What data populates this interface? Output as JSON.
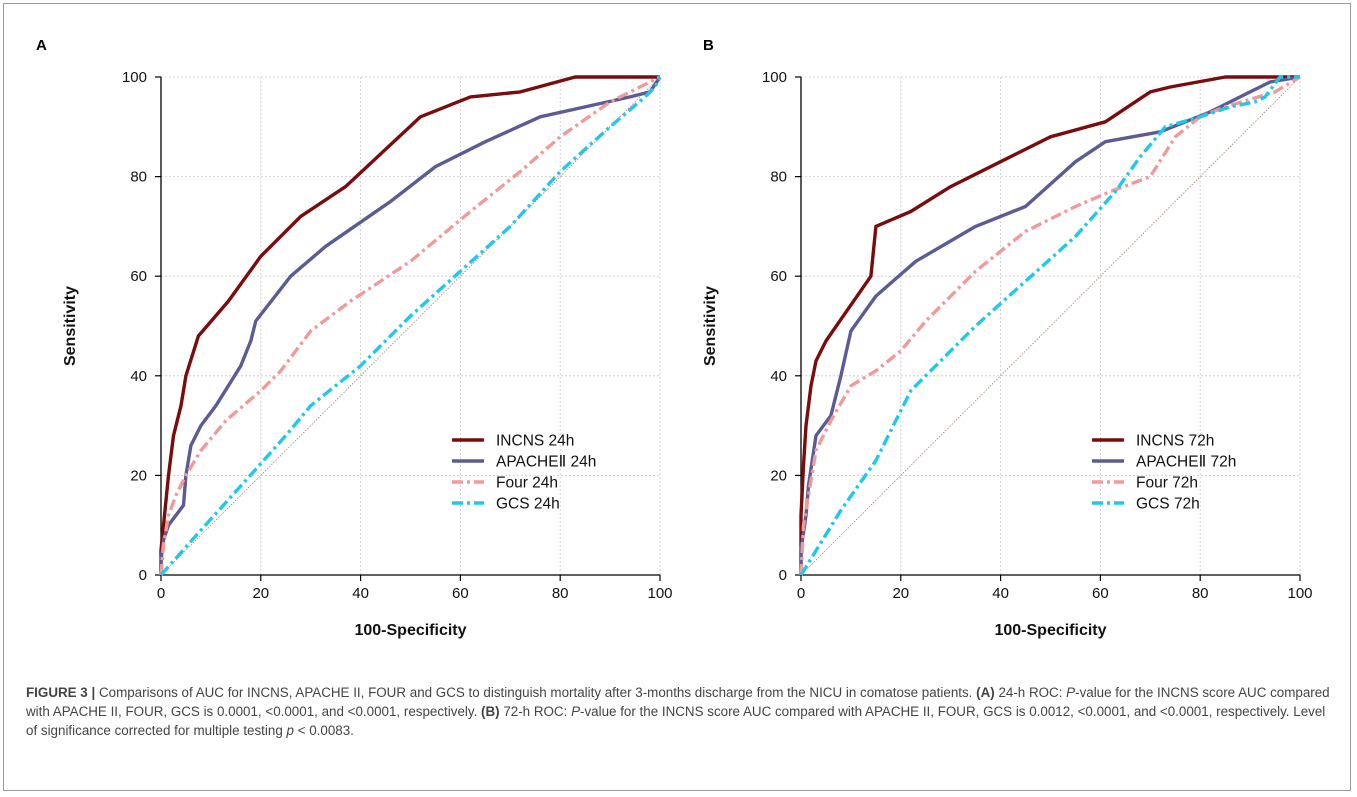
{
  "colors": {
    "incns": "#7a0c0c",
    "apache": "#5b5b96",
    "four": "#f09a9a",
    "gcs": "#1ec8ee",
    "diagonal": "#b08a80",
    "grid": "#c8c8c8"
  },
  "chart_data": [
    {
      "panel": "A",
      "type": "line",
      "xlabel": "100-Specificity",
      "ylabel": "Sensitivity",
      "xlim": [
        0,
        100
      ],
      "ylim": [
        0,
        100
      ],
      "xticks": [
        "0",
        "20",
        "40",
        "60",
        "80",
        "100"
      ],
      "yticks": [
        "0",
        "20",
        "40",
        "60",
        "80",
        "100"
      ],
      "grid": true,
      "legend_position": "bottom-right",
      "series": [
        {
          "name": "INCNS 24h",
          "color": "#7a0c0c",
          "dash": "solid",
          "points": [
            [
              0,
              0
            ],
            [
              0,
              5
            ],
            [
              0.5,
              10
            ],
            [
              1,
              15
            ],
            [
              1.5,
              20
            ],
            [
              2.5,
              28
            ],
            [
              4,
              34
            ],
            [
              5,
              40
            ],
            [
              7.5,
              48
            ],
            [
              13.5,
              55
            ],
            [
              20,
              64
            ],
            [
              28,
              72
            ],
            [
              37,
              78
            ],
            [
              52,
              92
            ],
            [
              62,
              96
            ],
            [
              72,
              97
            ],
            [
              83,
              100
            ],
            [
              100,
              100
            ]
          ]
        },
        {
          "name": "APACHEⅡ 24h",
          "color": "#5b5b96",
          "dash": "solid",
          "points": [
            [
              0,
              0
            ],
            [
              0,
              3
            ],
            [
              0.5,
              7
            ],
            [
              1.5,
              10
            ],
            [
              3,
              12
            ],
            [
              4.5,
              14
            ],
            [
              5,
              20
            ],
            [
              6,
              26
            ],
            [
              8,
              30
            ],
            [
              11,
              34
            ],
            [
              16,
              42
            ],
            [
              18,
              47
            ],
            [
              19,
              51
            ],
            [
              26,
              60
            ],
            [
              33,
              66
            ],
            [
              46,
              75
            ],
            [
              55,
              82
            ],
            [
              65,
              87
            ],
            [
              76,
              92
            ],
            [
              85,
              94
            ],
            [
              94,
              96
            ],
            [
              98,
              97
            ],
            [
              100,
              100
            ]
          ]
        },
        {
          "name": "Four 24h",
          "color": "#f09a9a",
          "dash": "dashdot",
          "points": [
            [
              0,
              0
            ],
            [
              0.5,
              6
            ],
            [
              1.5,
              12
            ],
            [
              3,
              16
            ],
            [
              5,
              20
            ],
            [
              8,
              25
            ],
            [
              13,
              31
            ],
            [
              20,
              37
            ],
            [
              24,
              41
            ],
            [
              30,
              49
            ],
            [
              38,
              55
            ],
            [
              50,
              63
            ],
            [
              62,
              73
            ],
            [
              72,
              81
            ],
            [
              80,
              88
            ],
            [
              90,
              95
            ],
            [
              100,
              100
            ]
          ]
        },
        {
          "name": "GCS 24h",
          "color": "#1ec8ee",
          "dash": "dashdot",
          "points": [
            [
              0,
              0
            ],
            [
              8,
              9
            ],
            [
              17,
              19
            ],
            [
              25,
              28
            ],
            [
              30,
              34
            ],
            [
              40,
              42
            ],
            [
              50,
              52
            ],
            [
              60,
              61
            ],
            [
              70,
              70
            ],
            [
              80,
              81
            ],
            [
              90,
              90
            ],
            [
              97,
              96
            ],
            [
              99,
              98
            ],
            [
              100,
              100
            ]
          ]
        }
      ]
    },
    {
      "panel": "B",
      "type": "line",
      "xlabel": "100-Specificity",
      "ylabel": "Sensitivity",
      "xlim": [
        0,
        100
      ],
      "ylim": [
        0,
        100
      ],
      "xticks": [
        "0",
        "20",
        "40",
        "60",
        "80",
        "100"
      ],
      "yticks": [
        "0",
        "20",
        "40",
        "60",
        "80",
        "100"
      ],
      "grid": true,
      "legend_position": "bottom-right",
      "series": [
        {
          "name": "INCNS 72h",
          "color": "#7a0c0c",
          "dash": "solid",
          "points": [
            [
              0,
              0
            ],
            [
              0,
              12
            ],
            [
              0.5,
              22
            ],
            [
              1,
              30
            ],
            [
              2,
              38
            ],
            [
              3,
              43
            ],
            [
              5,
              47
            ],
            [
              14,
              60
            ],
            [
              15,
              70
            ],
            [
              22,
              73
            ],
            [
              30,
              78
            ],
            [
              40,
              83
            ],
            [
              50,
              88
            ],
            [
              61,
              91
            ],
            [
              70,
              97
            ],
            [
              74,
              98
            ],
            [
              85,
              100
            ],
            [
              100,
              100
            ]
          ]
        },
        {
          "name": "APACHEⅡ 72h",
          "color": "#5b5b96",
          "dash": "solid",
          "points": [
            [
              0,
              0
            ],
            [
              0,
              5
            ],
            [
              1,
              12
            ],
            [
              1.5,
              18
            ],
            [
              3,
              28
            ],
            [
              6,
              32
            ],
            [
              8,
              40
            ],
            [
              10,
              49
            ],
            [
              15,
              56
            ],
            [
              23,
              63
            ],
            [
              35,
              70
            ],
            [
              45,
              74
            ],
            [
              55,
              83
            ],
            [
              61,
              87
            ],
            [
              72,
              89
            ],
            [
              82,
              93
            ],
            [
              90,
              97
            ],
            [
              94,
              99
            ],
            [
              100,
              100
            ]
          ]
        },
        {
          "name": "Four 72h",
          "color": "#f09a9a",
          "dash": "dashdot",
          "points": [
            [
              0,
              0
            ],
            [
              0.5,
              10
            ],
            [
              1.5,
              16
            ],
            [
              3,
              25
            ],
            [
              6,
              31
            ],
            [
              10,
              38
            ],
            [
              15,
              41
            ],
            [
              20,
              45
            ],
            [
              25,
              51
            ],
            [
              35,
              61
            ],
            [
              45,
              69
            ],
            [
              55,
              74
            ],
            [
              62,
              77
            ],
            [
              70,
              80
            ],
            [
              75,
              88
            ],
            [
              80,
              92
            ],
            [
              85,
              94
            ],
            [
              95,
              97
            ],
            [
              100,
              100
            ]
          ]
        },
        {
          "name": "GCS 72h",
          "color": "#1ec8ee",
          "dash": "dashdot",
          "points": [
            [
              0,
              0
            ],
            [
              8,
              13
            ],
            [
              15,
              23
            ],
            [
              22,
              37
            ],
            [
              27,
              42
            ],
            [
              35,
              50
            ],
            [
              45,
              59
            ],
            [
              55,
              68
            ],
            [
              63,
              77
            ],
            [
              68,
              84
            ],
            [
              73,
              90
            ],
            [
              80,
              92
            ],
            [
              86,
              94
            ],
            [
              91,
              95
            ],
            [
              93,
              96
            ],
            [
              96,
              100
            ],
            [
              100,
              100
            ]
          ]
        }
      ]
    }
  ],
  "caption": {
    "figure_label": "FIGURE 3 |",
    "intro": " Comparisons of AUC for INCNS, APACHE II, FOUR and GCS to distinguish mortality after 3-months discharge from the NICU in comatose patients. ",
    "a_label": "(A)",
    "a_text_1": " 24-h ROC: ",
    "a_p": "P",
    "a_text_2": "-value for the INCNS score AUC compared with APACHE II, FOUR, GCS is 0.0001, <0.0001, and <0.0001, respectively. ",
    "b_label": "(B)",
    "b_text_1": " 72-h ROC: ",
    "b_p": "P",
    "b_text_2": "-value for the INCNS score AUC compared with APACHE II, FOUR, GCS is 0.0012, <0.0001, and <0.0001, respectively. Level of significance corrected for multiple testing ",
    "final_p": "p",
    "final_text": " < 0.0083."
  }
}
